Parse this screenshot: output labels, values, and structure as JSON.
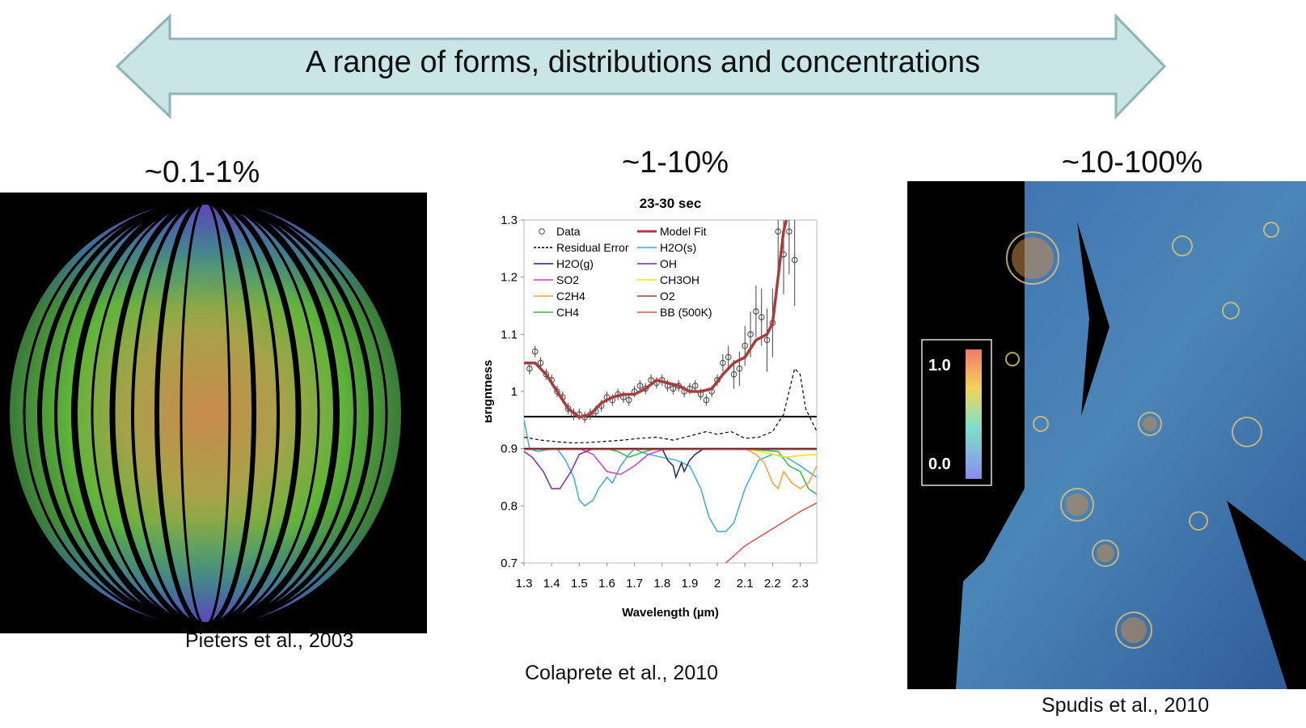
{
  "slide": {
    "banner_text": "A range of forms, distributions and concentrations",
    "colors": {
      "banner_fill": "#c9e5e6",
      "banner_stroke": "#8fb4b6"
    },
    "panels": [
      {
        "percent_label": "~0.1-1%",
        "citation": "Pieters et al., 2003"
      },
      {
        "percent_label": "~1-10%",
        "citation": "Colaprete et al., 2010"
      },
      {
        "percent_label": "~10-100%",
        "citation": "Spudis et al., 2010"
      }
    ],
    "colorbar": {
      "max_label": "1.0",
      "min_label": "0.0"
    }
  },
  "chart_data": {
    "type": "line",
    "title": "23-30 sec",
    "xlabel": "Wavelength (µm)",
    "ylabel": "Brightness",
    "xlim": [
      1.3,
      2.36
    ],
    "ylim": [
      0.7,
      1.3
    ],
    "xticks": [
      "1.3",
      "1.4",
      "1.5",
      "1.6",
      "1.7",
      "1.8",
      "1.9",
      "2",
      "2.1",
      "2.2",
      "2.3"
    ],
    "yticks": [
      "0.7",
      "0.8",
      "0.9",
      "1",
      "1.1",
      "1.2",
      "1.3"
    ],
    "grid": false,
    "legend_position": "top-left",
    "legend": [
      {
        "name": "Data",
        "color": "#444444",
        "marker": "circle"
      },
      {
        "name": "Model Fit",
        "color": "#a93c3c"
      },
      {
        "name": "Residual Error",
        "color": "#000000",
        "dashed": true
      },
      {
        "name": "H2O(s)",
        "color": "#39acd6"
      },
      {
        "name": "H2O(g)",
        "color": "#1b2a66"
      },
      {
        "name": "OH",
        "color": "#7a2aa8"
      },
      {
        "name": "SO2",
        "color": "#d23dc0"
      },
      {
        "name": "CH3OH",
        "color": "#f2e500"
      },
      {
        "name": "C2H4",
        "color": "#f5a23c"
      },
      {
        "name": "O2",
        "color": "#a33a3a"
      },
      {
        "name": "CH4",
        "color": "#3ab54a"
      },
      {
        "name": "BB (500K)",
        "color": "#e0524e"
      }
    ],
    "data_points": {
      "x": [
        1.32,
        1.34,
        1.36,
        1.38,
        1.4,
        1.42,
        1.44,
        1.46,
        1.48,
        1.5,
        1.52,
        1.54,
        1.56,
        1.58,
        1.6,
        1.62,
        1.64,
        1.66,
        1.68,
        1.7,
        1.72,
        1.74,
        1.76,
        1.78,
        1.8,
        1.82,
        1.84,
        1.86,
        1.88,
        1.9,
        1.92,
        1.94,
        1.96,
        1.98,
        2.0,
        2.02,
        2.04,
        2.06,
        2.08,
        2.1,
        2.12,
        2.14,
        2.16,
        2.18,
        2.2,
        2.22,
        2.24,
        2.26,
        2.28
      ],
      "y": [
        1.04,
        1.07,
        1.05,
        1.03,
        1.02,
        1.0,
        0.99,
        0.97,
        0.96,
        0.96,
        0.955,
        0.96,
        0.965,
        0.975,
        0.99,
        0.985,
        0.995,
        0.99,
        0.985,
        1.0,
        1.01,
        1.005,
        1.02,
        1.015,
        1.02,
        1.01,
        1.005,
        1.01,
        1.0,
        1.005,
        1.01,
        0.995,
        0.985,
        1.0,
        1.02,
        1.05,
        1.06,
        1.03,
        1.04,
        1.08,
        1.1,
        1.14,
        1.13,
        1.09,
        1.12,
        1.28,
        1.24,
        1.28,
        1.23
      ]
    },
    "series": [
      {
        "name": "Model Fit",
        "color": "#a93c3c",
        "width": 3.5,
        "x": [
          1.3,
          1.34,
          1.38,
          1.42,
          1.46,
          1.5,
          1.54,
          1.58,
          1.62,
          1.66,
          1.7,
          1.74,
          1.78,
          1.82,
          1.86,
          1.9,
          1.94,
          1.98,
          2.02,
          2.06,
          2.1,
          2.14,
          2.18,
          2.2,
          2.22,
          2.24,
          2.25
        ],
        "y": [
          1.05,
          1.05,
          1.03,
          1.0,
          0.97,
          0.955,
          0.96,
          0.98,
          0.99,
          0.995,
          0.995,
          1.005,
          1.02,
          1.015,
          1.01,
          1.0,
          1.0,
          1.005,
          1.03,
          1.05,
          1.06,
          1.09,
          1.1,
          1.12,
          1.2,
          1.28,
          1.3
        ]
      },
      {
        "name": "Residual Error",
        "color": "#000000",
        "width": 1.2,
        "dashed": true,
        "x": [
          1.3,
          1.36,
          1.42,
          1.48,
          1.54,
          1.6,
          1.66,
          1.72,
          1.78,
          1.84,
          1.9,
          1.96,
          2.0,
          2.05,
          2.1,
          2.15,
          2.2,
          2.24,
          2.26,
          2.28,
          2.3,
          2.32,
          2.36
        ],
        "y": [
          0.92,
          0.915,
          0.912,
          0.91,
          0.911,
          0.913,
          0.915,
          0.918,
          0.92,
          0.915,
          0.922,
          0.93,
          0.925,
          0.93,
          0.918,
          0.92,
          0.93,
          0.96,
          1.0,
          1.04,
          1.03,
          0.97,
          0.93
        ]
      },
      {
        "name": "Residual Error baseline",
        "color": "#000000",
        "width": 2,
        "x": [
          1.3,
          2.36
        ],
        "y": [
          0.956,
          0.956
        ]
      },
      {
        "name": "Residual Error axis",
        "color": "#000000",
        "width": 2,
        "x": [
          1.3,
          2.36
        ],
        "y": [
          0.9,
          0.9
        ]
      },
      {
        "name": "CH4",
        "color": "#3ab54a",
        "width": 1.5,
        "x": [
          1.3,
          1.6,
          1.64,
          1.68,
          1.72,
          1.76,
          1.8,
          2.1,
          2.22,
          2.26,
          2.3,
          2.33,
          2.36
        ],
        "y": [
          0.9,
          0.9,
          0.895,
          0.885,
          0.892,
          0.898,
          0.9,
          0.9,
          0.895,
          0.87,
          0.86,
          0.83,
          0.82
        ]
      },
      {
        "name": "SO2",
        "color": "#d23dc0",
        "width": 1.5,
        "x": [
          1.3,
          1.5,
          1.55,
          1.6,
          1.65,
          1.7,
          1.75,
          1.8,
          1.85,
          2.36
        ],
        "y": [
          0.9,
          0.9,
          0.89,
          0.86,
          0.855,
          0.87,
          0.89,
          0.898,
          0.9,
          0.9
        ]
      },
      {
        "name": "OH",
        "color": "#7a2aa8",
        "width": 1.5,
        "x": [
          1.3,
          1.33,
          1.37,
          1.4,
          1.43,
          1.47,
          1.5,
          1.55,
          2.36
        ],
        "y": [
          0.895,
          0.885,
          0.86,
          0.83,
          0.83,
          0.86,
          0.89,
          0.9,
          0.9
        ]
      },
      {
        "name": "H2O(g)",
        "color": "#1b2a66",
        "width": 1.5,
        "x": [
          1.3,
          1.8,
          1.82,
          1.84,
          1.85,
          1.87,
          1.88,
          1.9,
          1.92,
          1.95,
          2.36
        ],
        "y": [
          0.9,
          0.9,
          0.88,
          0.87,
          0.85,
          0.875,
          0.86,
          0.88,
          0.89,
          0.9,
          0.9
        ]
      },
      {
        "name": "H2O(s)",
        "color": "#39acd6",
        "width": 1.5,
        "x": [
          1.3,
          1.32,
          1.35,
          1.38,
          1.42,
          1.45,
          1.48,
          1.5,
          1.52,
          1.55,
          1.57,
          1.6,
          1.62,
          1.65,
          1.68,
          1.7,
          1.72,
          1.75,
          1.8,
          1.85,
          1.9,
          1.94,
          1.97,
          2.0,
          2.03,
          2.06,
          2.1,
          2.15,
          2.2,
          2.25,
          2.3,
          2.36
        ],
        "y": [
          0.95,
          0.9,
          0.895,
          0.898,
          0.9,
          0.88,
          0.85,
          0.81,
          0.8,
          0.81,
          0.83,
          0.85,
          0.84,
          0.87,
          0.89,
          0.9,
          0.895,
          0.89,
          0.885,
          0.88,
          0.87,
          0.83,
          0.78,
          0.755,
          0.755,
          0.77,
          0.83,
          0.88,
          0.89,
          0.885,
          0.87,
          0.85
        ]
      },
      {
        "name": "CH3OH",
        "color": "#f2e500",
        "width": 1.5,
        "x": [
          1.3,
          2.1,
          2.2,
          2.25,
          2.3,
          2.36
        ],
        "y": [
          0.9,
          0.9,
          0.89,
          0.885,
          0.888,
          0.89
        ]
      },
      {
        "name": "C2H4",
        "color": "#f5a23c",
        "width": 1.5,
        "x": [
          1.3,
          2.1,
          2.14,
          2.17,
          2.2,
          2.22,
          2.24,
          2.27,
          2.3,
          2.33,
          2.36
        ],
        "y": [
          0.9,
          0.9,
          0.89,
          0.875,
          0.84,
          0.83,
          0.86,
          0.84,
          0.83,
          0.84,
          0.87
        ]
      },
      {
        "name": "O2",
        "color": "#a33a3a",
        "width": 2,
        "x": [
          1.3,
          2.36
        ],
        "y": [
          0.899,
          0.899
        ]
      },
      {
        "name": "BB (500K)",
        "color": "#e0524e",
        "width": 1.5,
        "x": [
          2.03,
          2.1,
          2.2,
          2.3,
          2.36
        ],
        "y": [
          0.7,
          0.73,
          0.76,
          0.79,
          0.805
        ]
      }
    ]
  }
}
